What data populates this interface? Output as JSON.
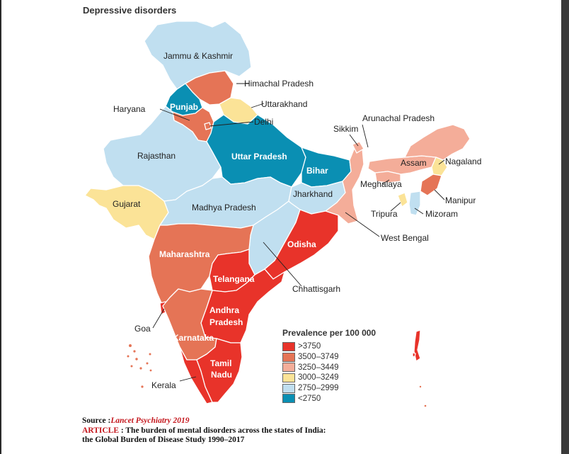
{
  "title": "Depressive disorders",
  "colors": {
    "gt3750": "#e8332a",
    "c3500_3749": "#e57456",
    "c3250_3449": "#f4ad99",
    "c3000_3249": "#fbe397",
    "c2750_2999": "#c0dff0",
    "lt2750": "#0a8fb3"
  },
  "states": {
    "jammu_kashmir": "Jammu & Kashmir",
    "himachal": "Himachal Pradesh",
    "punjab": "Punjab",
    "haryana": "Haryana",
    "uttarakhand": "Uttarakhand",
    "delhi": "Delhi",
    "rajasthan": "Rajasthan",
    "uttar_pradesh": "Uttar Pradesh",
    "bihar": "Bihar",
    "sikkim": "Sikkim",
    "arunachal": "Arunachal Pradesh",
    "assam": "Assam",
    "nagaland": "Nagaland",
    "meghalaya": "Meghalaya",
    "manipur": "Manipur",
    "jharkhand": "Jharkhand",
    "tripura": "Tripura",
    "mizoram": "Mizoram",
    "gujarat": "Gujarat",
    "madhya_pradesh": "Madhya Pradesh",
    "west_bengal": "West Bengal",
    "odisha": "Odisha",
    "maharashtra": "Maharashtra",
    "telangana": "Telangana",
    "chhattisgarh": "Chhattisgarh",
    "andhra_1": "Andhra",
    "andhra_2": "Pradesh",
    "goa": "Goa",
    "karnataka": "Karnataka",
    "tamil_1": "Tamil",
    "tamil_2": "Nadu",
    "kerala": "Kerala"
  },
  "legend": {
    "title": "Prevalence per 100 000",
    "items": [
      {
        "label": ">3750",
        "color": "#e8332a"
      },
      {
        "label": "3500–3749",
        "color": "#e57456"
      },
      {
        "label": "3250–3449",
        "color": "#f4ad99"
      },
      {
        "label": "3000–3249",
        "color": "#fbe397"
      },
      {
        "label": "2750–2999",
        "color": "#c0dff0"
      },
      {
        "label": "<2750",
        "color": "#0a8fb3"
      }
    ]
  },
  "source": {
    "label": "Source :",
    "journal": "Lancet Psychiatry 2019",
    "article_label": "ARTICLE",
    "article_text_1": " : The burden of mental disorders across the states of India:",
    "article_text_2": "the Global Burden of Disease Study 1990–2017"
  }
}
